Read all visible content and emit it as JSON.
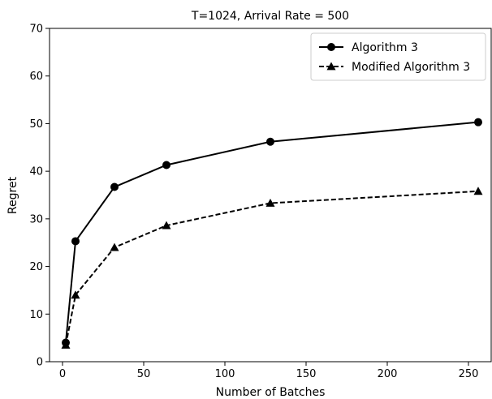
{
  "chart_data": {
    "type": "line",
    "title": "T=1024, Arrival Rate = 500",
    "xlabel": "Number of Batches",
    "ylabel": "Regret",
    "xlim": [
      -8,
      264
    ],
    "ylim": [
      0,
      70
    ],
    "xticks": [
      0,
      50,
      100,
      150,
      200,
      250
    ],
    "yticks": [
      0,
      10,
      20,
      30,
      40,
      50,
      60,
      70
    ],
    "grid": false,
    "legend_position": "top-right",
    "series": [
      {
        "name": "Algorithm 3",
        "marker": "circle",
        "line_style": "solid",
        "color": "#000000",
        "x": [
          2,
          8,
          32,
          64,
          128,
          256
        ],
        "y": [
          4.0,
          25.3,
          36.7,
          41.3,
          46.2,
          50.3
        ]
      },
      {
        "name": "Modified Algorithm 3",
        "marker": "triangle",
        "line_style": "dashed",
        "color": "#000000",
        "x": [
          2,
          8,
          32,
          64,
          128,
          256
        ],
        "y": [
          3.5,
          14.0,
          24.0,
          28.6,
          33.3,
          35.8
        ]
      }
    ]
  }
}
